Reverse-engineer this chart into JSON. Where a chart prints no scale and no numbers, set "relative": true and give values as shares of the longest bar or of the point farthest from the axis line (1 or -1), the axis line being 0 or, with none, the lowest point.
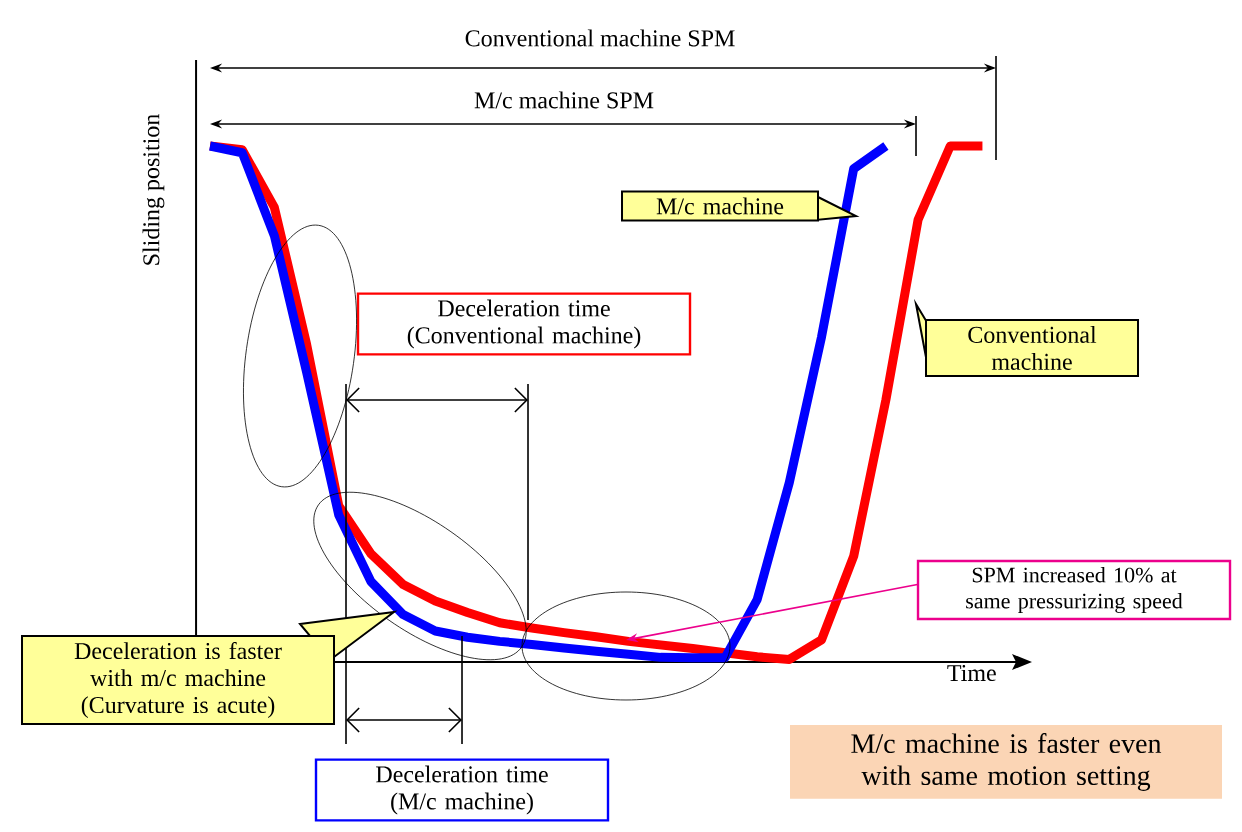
{
  "chart_data": {
    "type": "line",
    "relative": true,
    "xlabel": "Time",
    "ylabel": "Sliding position",
    "tick_labels": false,
    "line_style": "solid",
    "categories": [
      null,
      null,
      null,
      null,
      null,
      null,
      null,
      null,
      null,
      null,
      null,
      null,
      null,
      null,
      null,
      null,
      null,
      null,
      null,
      null,
      null,
      null,
      null,
      null,
      null
    ],
    "series": [
      {
        "name": "Conventional machine",
        "color": "#ff0000",
        "values": [
          1,
          0.993,
          0.881,
          0.616,
          0.303,
          0.21,
          0.15,
          0.118,
          0.096,
          0.076,
          0.066,
          0.057,
          0.049,
          0.04,
          0.033,
          0.026,
          0.018,
          0.01,
          0.005,
          0.043,
          0.205,
          0.508,
          0.857,
          1,
          1
        ]
      },
      {
        "name": "M/c machine",
        "color": "#0000ff",
        "values": [
          1,
          0.987,
          0.826,
          0.562,
          0.285,
          0.156,
          0.092,
          0.06,
          0.048,
          0.04,
          0.034,
          0.027,
          0.021,
          0.015,
          0.009,
          0.008,
          0.008,
          0.121,
          0.348,
          0.63,
          0.956,
          1,
          null,
          null,
          null
        ]
      }
    ],
    "annotations": [
      "Conventional machine SPM",
      "M/c machine SPM",
      "Deceleration time (Conventional machine)",
      "Deceleration time (M/c machine)",
      "Deceleration is faster with m/c machine (Curvature is acute)",
      "SPM increased 10% at same pressurizing speed",
      "M/c machine is faster even with same motion setting"
    ]
  }
}
